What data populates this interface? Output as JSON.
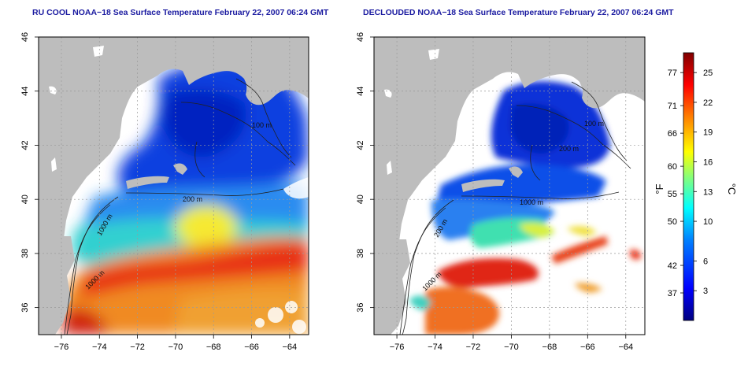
{
  "panels": [
    {
      "id": "left",
      "title": "RU COOL NOAA−18 Sea Surface Temperature February 22, 2007 06:24 GMT",
      "contour_labels": [
        "100 m",
        "200 m",
        "1000 m",
        "1000 m"
      ]
    },
    {
      "id": "right",
      "title": "DECLOUDED NOAA−18 Sea Surface Temperature February 22, 2007 06:24 GMT",
      "contour_labels": [
        "100 m",
        "200 m",
        "1000 m",
        "200 m",
        "1000 m"
      ]
    }
  ],
  "axes": {
    "lon_ticks": [
      "−76",
      "−74",
      "−72",
      "−70",
      "−68",
      "−66",
      "−64"
    ],
    "lat_ticks": [
      "36",
      "38",
      "40",
      "42",
      "44",
      "46"
    ]
  },
  "colorbar": {
    "fahrenheit_label": "°F",
    "celsius_label": "°C",
    "fahrenheit_ticks": [
      "77",
      "71",
      "66",
      "60",
      "55",
      "50",
      "42",
      "37"
    ],
    "celsius_ticks": [
      "25",
      "22",
      "19",
      "16",
      "13",
      "10",
      "6",
      "3"
    ],
    "range_c": [
      0,
      27
    ],
    "colors": [
      "#00007f",
      "#0000ff",
      "#0080ff",
      "#00ffff",
      "#80ff80",
      "#ffff00",
      "#ff8000",
      "#ff0000",
      "#7f0000"
    ]
  },
  "colors": {
    "land": "#bdbdbd",
    "no_data": "#ffffff",
    "grid": "#9a9a9a",
    "title": "#1a1aa0"
  }
}
